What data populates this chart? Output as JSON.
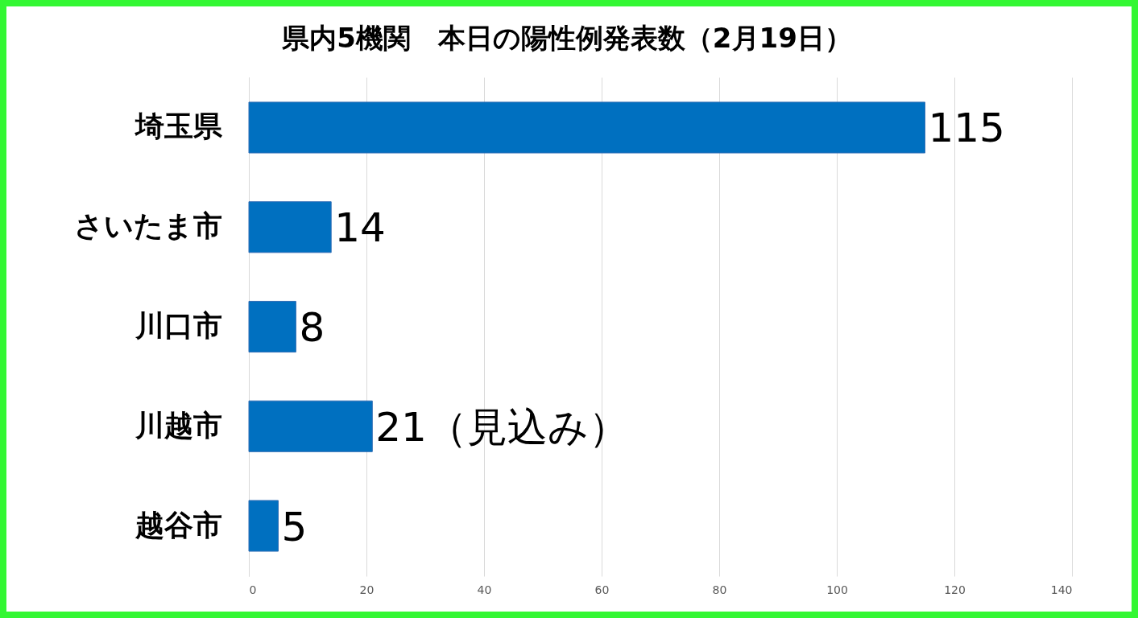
{
  "chart_data": {
    "type": "bar",
    "orientation": "horizontal",
    "title": "県内5機関　本日の陽性例発表数（2月19日）",
    "categories": [
      "埼玉県",
      "さいたま市",
      "川口市",
      "川越市",
      "越谷市"
    ],
    "values": [
      115,
      14,
      8,
      21,
      5
    ],
    "value_labels": [
      "115",
      "14",
      "8",
      "21（見込み）",
      "5"
    ],
    "color": "#0070c0",
    "xlim": [
      0,
      140
    ],
    "xticks": [
      0,
      20,
      40,
      60,
      80,
      100,
      120,
      140
    ],
    "grid": "x"
  }
}
